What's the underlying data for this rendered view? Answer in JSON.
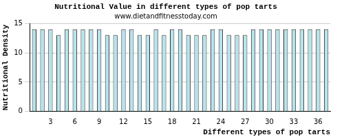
{
  "chart_data": {
    "type": "bar",
    "title": "Nutritional Value in different types of pop tarts",
    "subtitle": "www.dietandfitnesstoday.com",
    "x_label": "Different types of pop tarts",
    "y_label": "Nutritional Density",
    "categories": [
      null,
      null,
      "3",
      null,
      null,
      "6",
      null,
      null,
      "9",
      null,
      null,
      "12",
      null,
      null,
      "15",
      null,
      null,
      "18",
      null,
      null,
      "21",
      null,
      null,
      "24",
      null,
      null,
      "27",
      null,
      null,
      "30",
      null,
      null,
      "33",
      null,
      null,
      "36",
      null
    ],
    "values": [
      14,
      14,
      14,
      13,
      14,
      14,
      14,
      14,
      14,
      13,
      13,
      14,
      14,
      13,
      13,
      14,
      13,
      14,
      14,
      13,
      13,
      13,
      14,
      14,
      13,
      13,
      13,
      14,
      14,
      14,
      14,
      14,
      14,
      14,
      14,
      14,
      14
    ],
    "color": "#b7e3ec",
    "ylim": [
      0,
      15
    ],
    "yticks": [
      0,
      5,
      10,
      15
    ],
    "grid": true
  }
}
